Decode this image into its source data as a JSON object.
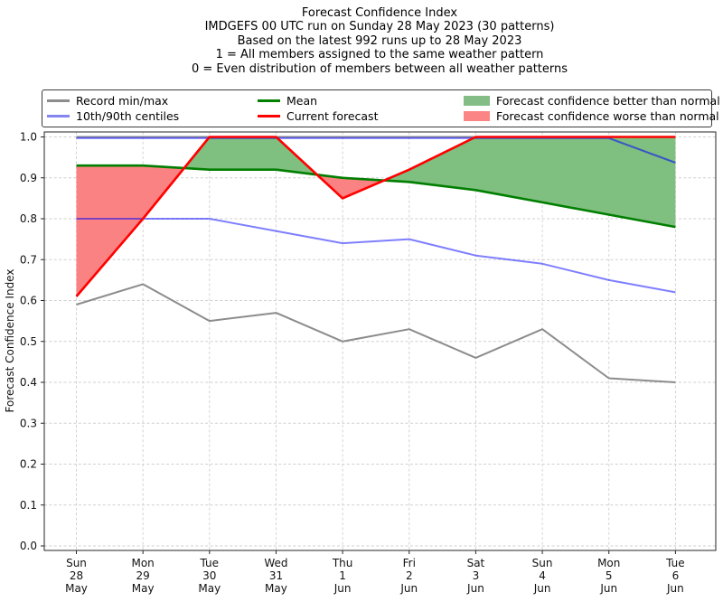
{
  "titles": [
    "Forecast Confidence Index",
    "IMDGEFS 00 UTC run on Sunday 28 May 2023 (30 patterns)",
    "Based on the latest 992 runs up to 28 May 2023",
    "1 = All members assigned to the same weather pattern",
    "0 = Even distribution of members between all weather patterns"
  ],
  "legend": {
    "items": [
      {
        "label": "Record min/max",
        "type": "line",
        "color": "#8c8c8c"
      },
      {
        "label": "10th/90th centiles",
        "type": "line",
        "color": "#8585f0"
      },
      {
        "label": "Mean",
        "type": "line",
        "color": "#007f00"
      },
      {
        "label": "Current forecast",
        "type": "line",
        "color": "#ff0000"
      },
      {
        "label": "Forecast confidence better than normal",
        "type": "patch",
        "color": "#84be86"
      },
      {
        "label": "Forecast confidence worse than normal",
        "type": "patch",
        "color": "#fb8585"
      }
    ]
  },
  "chart_data": {
    "type": "line",
    "title": "Forecast Confidence Index",
    "ylabel": "Forecast Confidence Index",
    "ylim": [
      0.0,
      1.0
    ],
    "yticks": [
      0.0,
      0.1,
      0.2,
      0.3,
      0.4,
      0.5,
      0.6,
      0.7,
      0.8,
      0.9,
      1.0
    ],
    "grid": "dashed, both axes",
    "legend_position": "top",
    "categories": [
      [
        "Sun",
        "28",
        "May"
      ],
      [
        "Mon",
        "29",
        "May"
      ],
      [
        "Tue",
        "30",
        "May"
      ],
      [
        "Wed",
        "31",
        "May"
      ],
      [
        "Thu",
        "1",
        "Jun"
      ],
      [
        "Fri",
        "2",
        "Jun"
      ],
      [
        "Sat",
        "3",
        "Jun"
      ],
      [
        "Sun",
        "4",
        "Jun"
      ],
      [
        "Mon",
        "5",
        "Jun"
      ],
      [
        "Tue",
        "6",
        "Jun"
      ]
    ],
    "series": [
      {
        "name": "Record max",
        "color": "#8c8c8c",
        "width": 2.0,
        "dy": 0,
        "values": [
          1.0,
          1.0,
          1.0,
          1.0,
          1.0,
          1.0,
          1.0,
          1.0,
          1.0,
          1.0
        ]
      },
      {
        "name": "Record min",
        "color": "#8c8c8c",
        "width": 2.0,
        "dy": 0,
        "values": [
          0.59,
          0.64,
          0.55,
          0.57,
          0.5,
          0.53,
          0.46,
          0.53,
          0.41,
          0.4
        ]
      },
      {
        "name": "90th centile",
        "color": "rgba(0,0,255,0.55)",
        "width": 2.0,
        "dy": 1.3,
        "values": [
          1.0,
          1.0,
          1.0,
          1.0,
          1.0,
          1.0,
          1.0,
          1.0,
          1.0,
          0.94
        ]
      },
      {
        "name": "10th centile",
        "color": "rgba(0,0,255,0.50)",
        "width": 2.0,
        "dy": 0,
        "values": [
          0.8,
          0.8,
          0.8,
          0.77,
          0.74,
          0.75,
          0.71,
          0.69,
          0.65,
          0.62
        ]
      },
      {
        "name": "Mean",
        "color": "#007f00",
        "width": 2.6,
        "dy": 0,
        "values": [
          0.93,
          0.93,
          0.92,
          0.92,
          0.9,
          0.89,
          0.87,
          0.84,
          0.81,
          0.78
        ]
      },
      {
        "name": "Current forecast",
        "color": "#ff0000",
        "width": 2.6,
        "dy": 0,
        "values": [
          0.61,
          0.8,
          1.0,
          1.0,
          0.85,
          0.92,
          1.0,
          1.0,
          1.0,
          1.0
        ]
      }
    ],
    "fills": {
      "upper": "Current forecast",
      "lower": "Mean",
      "positive_color": "#7fbf7f",
      "negative_color": "#fb8282",
      "positive_label": "Forecast confidence better than normal",
      "negative_label": "Forecast confidence worse than normal"
    }
  }
}
